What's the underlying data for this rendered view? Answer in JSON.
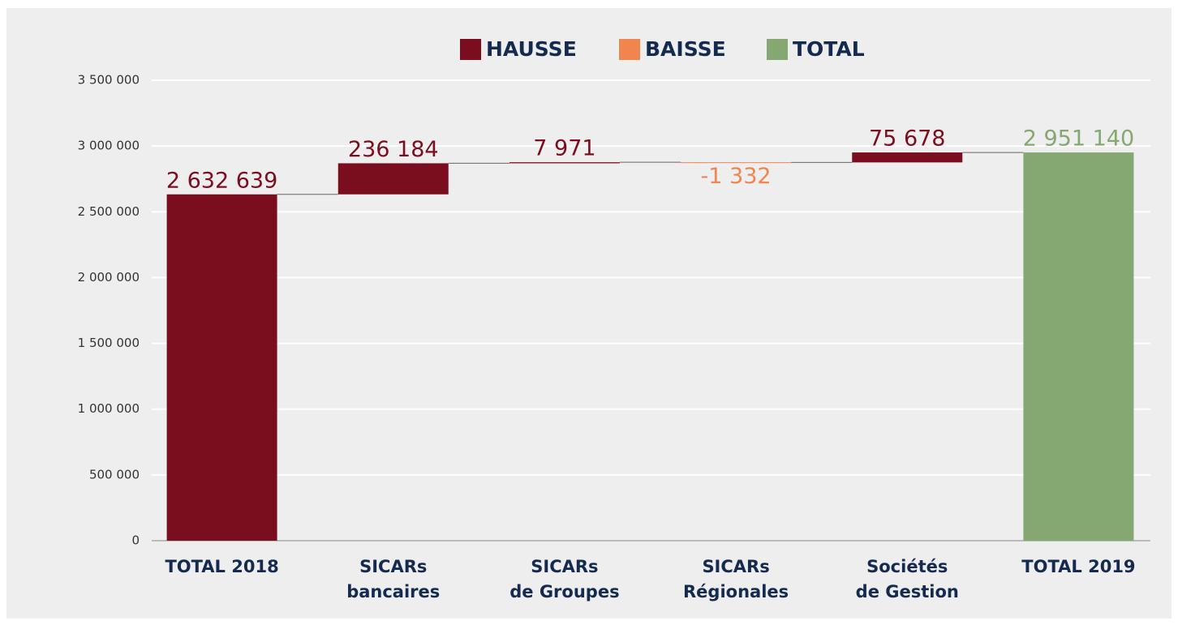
{
  "chart_data": {
    "type": "waterfall",
    "legend": [
      {
        "name": "HAUSSE",
        "color": "#7a0e1e"
      },
      {
        "name": "BAISSE",
        "color": "#f0854e"
      },
      {
        "name": "TOTAL",
        "color": "#85a872"
      }
    ],
    "categories": [
      [
        "TOTAL 2018"
      ],
      [
        "SICARs",
        "bancaires"
      ],
      [
        "SICARs",
        "de Groupes"
      ],
      [
        "SICARs",
        "Régionales"
      ],
      [
        "Sociétés",
        "de Gestion"
      ],
      [
        "TOTAL 2019"
      ]
    ],
    "values": [
      2632639,
      236184,
      7971,
      -1332,
      75678,
      2951140
    ],
    "value_labels": [
      "2 632 639",
      "236 184",
      "7 971",
      "-1 332",
      "75 678",
      "2 951 140"
    ],
    "ylim": [
      0,
      3500000
    ],
    "yticks": [
      0,
      {
        "value": 500000,
        "label": "500 000"
      },
      {
        "value": 1000000,
        "label": "1 000 000"
      },
      {
        "value": 1500000,
        "label": "1 500 000"
      },
      {
        "value": 2000000,
        "label": "2 000 000"
      },
      {
        "value": 2500000,
        "label": "2 500 000"
      },
      {
        "value": 3000000,
        "label": "3 000 000"
      },
      {
        "value": 3500000,
        "label": "3 500 000"
      }
    ],
    "grid": true
  }
}
